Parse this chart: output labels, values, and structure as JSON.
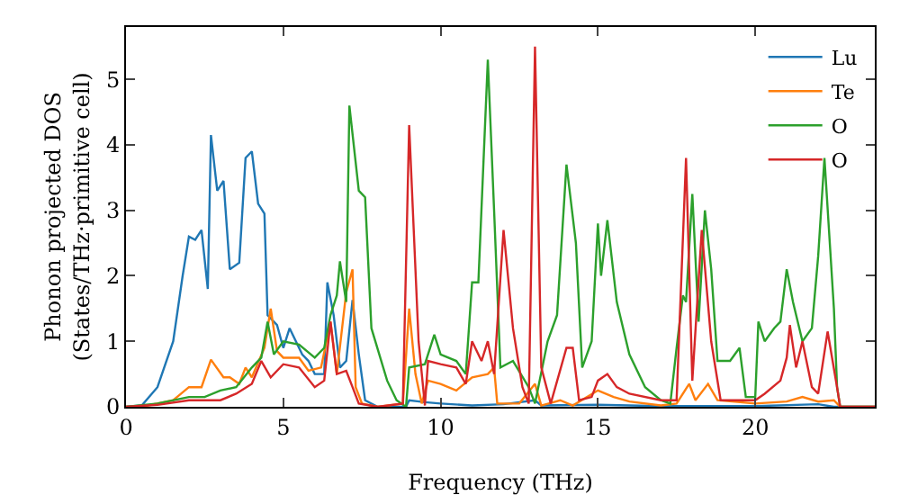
{
  "chart_data": {
    "type": "line",
    "xlabel": "Frequency (THz)",
    "ylabel": "Phonon projected DOS\n(States/THz·primitive cell)",
    "xlim": [
      0,
      23.8
    ],
    "ylim": [
      0,
      5.8
    ],
    "xticks": [
      0,
      5,
      10,
      15,
      20
    ],
    "yticks": [
      0,
      1,
      2,
      3,
      4,
      5
    ],
    "grid": false,
    "legend": "top right",
    "marker": "none",
    "line_style": "solid",
    "series": [
      {
        "name": "Lu",
        "color": "#1f77b4",
        "x": [
          0,
          0.5,
          1,
          1.5,
          1.8,
          2.0,
          2.2,
          2.4,
          2.6,
          2.7,
          2.9,
          3.1,
          3.3,
          3.6,
          3.8,
          4.0,
          4.2,
          4.4,
          4.5,
          4.8,
          5.0,
          5.2,
          5.4,
          5.6,
          5.8,
          6.0,
          6.3,
          6.4,
          6.6,
          6.8,
          7.0,
          7.2,
          7.4,
          7.6,
          8,
          8.9,
          9.0,
          9.5,
          10,
          11,
          12,
          13,
          13.2,
          15,
          17,
          20,
          22,
          22.5,
          23.8
        ],
        "values": [
          0,
          0.02,
          0.3,
          1.0,
          2.0,
          2.6,
          2.55,
          2.7,
          1.8,
          4.15,
          3.3,
          3.45,
          2.1,
          2.2,
          3.8,
          3.9,
          3.1,
          2.95,
          1.4,
          1.25,
          0.9,
          1.2,
          1.0,
          0.8,
          0.7,
          0.5,
          0.5,
          1.9,
          1.4,
          0.6,
          0.7,
          1.63,
          0.8,
          0.1,
          0,
          0,
          0.1,
          0.07,
          0.05,
          0.02,
          0.04,
          0.1,
          0.02,
          0.03,
          0.01,
          0.01,
          0.04,
          0,
          0
        ]
      },
      {
        "name": "Te",
        "color": "#ff7f0e",
        "x": [
          0,
          0.5,
          1.5,
          2,
          2.4,
          2.7,
          3.1,
          3.3,
          3.6,
          3.8,
          4.0,
          4.4,
          4.6,
          4.8,
          5.0,
          5.5,
          5.8,
          6.2,
          6.5,
          6.7,
          7.0,
          7.2,
          7.3,
          7.5,
          8,
          8.8,
          9.0,
          9.2,
          9.4,
          9.6,
          10,
          10.5,
          11,
          11.5,
          11.7,
          11.8,
          12.5,
          13,
          13.2,
          13.8,
          14.2,
          15,
          15.5,
          16,
          17,
          17.5,
          17.9,
          18.1,
          18.5,
          18.8,
          20,
          21,
          21.5,
          22,
          22.5,
          22.7,
          23.8
        ],
        "values": [
          0,
          0,
          0.1,
          0.3,
          0.3,
          0.72,
          0.45,
          0.45,
          0.35,
          0.6,
          0.45,
          0.9,
          1.5,
          0.85,
          0.75,
          0.75,
          0.55,
          0.6,
          1.3,
          0.5,
          1.75,
          2.1,
          0.3,
          0.05,
          0,
          0.05,
          1.5,
          0.5,
          0.05,
          0.4,
          0.35,
          0.25,
          0.45,
          0.5,
          0.6,
          0.05,
          0.05,
          0.35,
          0.02,
          0.1,
          0.02,
          0.25,
          0.15,
          0.08,
          0.02,
          0.05,
          0.35,
          0.1,
          0.35,
          0.1,
          0.05,
          0.08,
          0.15,
          0.08,
          0.1,
          0,
          0
        ]
      },
      {
        "name": "O",
        "color": "#2ca02c",
        "x": [
          0,
          1,
          2,
          2.5,
          3,
          3.5,
          4,
          4.3,
          4.5,
          4.7,
          5.0,
          5.5,
          6.0,
          6.3,
          6.5,
          6.7,
          6.8,
          7.0,
          7.1,
          7.4,
          7.6,
          7.8,
          8.3,
          8.6,
          8.9,
          9.0,
          9.5,
          9.8,
          10.0,
          10.5,
          10.8,
          11.0,
          11.2,
          11.5,
          11.7,
          11.9,
          12.3,
          12.8,
          13.0,
          13.4,
          13.7,
          14.0,
          14.3,
          14.5,
          14.8,
          15,
          15.1,
          15.3,
          15.6,
          16,
          16.5,
          17,
          17.3,
          17.5,
          17.7,
          17.8,
          18,
          18.2,
          18.4,
          18.6,
          18.8,
          19.2,
          19.5,
          19.7,
          20,
          20.1,
          20.3,
          20.6,
          20.8,
          21,
          21.2,
          21.5,
          21.8,
          22,
          22.2,
          22.5,
          22.6,
          22.7,
          23.8
        ],
        "values": [
          0,
          0.05,
          0.15,
          0.15,
          0.25,
          0.3,
          0.6,
          0.75,
          1.3,
          0.8,
          1.0,
          0.95,
          0.75,
          0.9,
          1.4,
          1.7,
          2.22,
          1.6,
          4.6,
          3.3,
          3.2,
          1.2,
          0.4,
          0.1,
          0,
          0.6,
          0.65,
          1.1,
          0.8,
          0.7,
          0.5,
          1.9,
          1.9,
          5.3,
          3.0,
          0.6,
          0.7,
          0.3,
          0.05,
          1.0,
          1.4,
          3.7,
          2.5,
          0.6,
          1.0,
          2.8,
          2.0,
          2.85,
          1.6,
          0.8,
          0.3,
          0.1,
          0.05,
          0.9,
          1.7,
          1.6,
          3.25,
          1.3,
          3.0,
          2.1,
          0.7,
          0.7,
          0.9,
          0.15,
          0.15,
          1.3,
          1.0,
          1.2,
          1.3,
          2.1,
          1.6,
          1.0,
          1.2,
          2.3,
          3.8,
          1.5,
          0.3,
          0,
          0
        ]
      },
      {
        "name": "O",
        "color": "#d62728",
        "x": [
          0,
          1,
          2,
          3,
          3.5,
          4,
          4.3,
          4.6,
          5.0,
          5.5,
          6.0,
          6.3,
          6.5,
          6.7,
          7.0,
          7.2,
          7.4,
          8,
          8.8,
          9.0,
          9.3,
          9.5,
          9.6,
          10,
          10.5,
          10.8,
          11,
          11.3,
          11.5,
          11.7,
          12,
          12.3,
          12.6,
          12.8,
          13.0,
          13.2,
          13.5,
          14,
          14.2,
          14.4,
          14.8,
          15,
          15.3,
          15.6,
          16,
          17,
          17.5,
          17.8,
          18.0,
          18.3,
          18.6,
          18.9,
          20,
          20.3,
          20.8,
          21.0,
          21.1,
          21.3,
          21.5,
          21.8,
          22,
          22.3,
          22.6,
          22.7,
          23.8
        ],
        "values": [
          0,
          0.03,
          0.1,
          0.1,
          0.2,
          0.35,
          0.7,
          0.45,
          0.65,
          0.6,
          0.3,
          0.4,
          1.3,
          0.5,
          0.55,
          0.3,
          0.05,
          0,
          0.05,
          4.3,
          1.0,
          0.02,
          0.7,
          0.65,
          0.6,
          0.35,
          1.0,
          0.7,
          1.0,
          0.5,
          2.7,
          1.2,
          0.3,
          0.05,
          5.5,
          0.6,
          0.05,
          0.9,
          0.9,
          0.1,
          0.15,
          0.4,
          0.5,
          0.3,
          0.2,
          0.1,
          0.1,
          3.8,
          0.4,
          2.7,
          1.0,
          0.1,
          0.1,
          0.2,
          0.4,
          0.75,
          1.25,
          0.6,
          1.0,
          0.3,
          0.2,
          1.15,
          0.3,
          0,
          0
        ]
      }
    ]
  }
}
